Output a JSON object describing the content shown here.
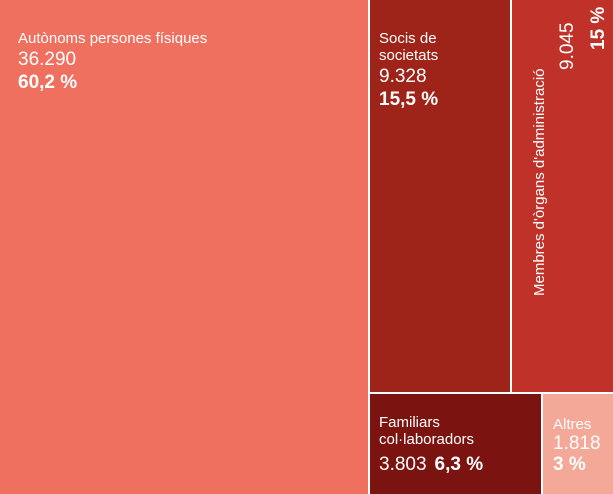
{
  "chart_data": {
    "type": "treemap",
    "items": [
      {
        "label": "Autònoms persones físiques",
        "value": 36290,
        "value_text": "36.290",
        "pct_text": "60,2 %",
        "color": "#f07060"
      },
      {
        "label": "Socis de societats",
        "value": 9328,
        "value_text": "9.328",
        "pct_text": "15,5 %",
        "color": "#9e2318"
      },
      {
        "label": "Membres d'òrgans d'administració",
        "value": 9045,
        "value_text": "9.045",
        "pct_text": "15 %",
        "color": "#c0312a"
      },
      {
        "label": "Familiars col·laboradors",
        "value": 3803,
        "value_text": "3.803",
        "pct_text": "6,3 %",
        "color": "#7b1410"
      },
      {
        "label": "Altres",
        "value": 1818,
        "value_text": "1.818",
        "pct_text": "3 %",
        "color": "#f4a898"
      }
    ]
  }
}
